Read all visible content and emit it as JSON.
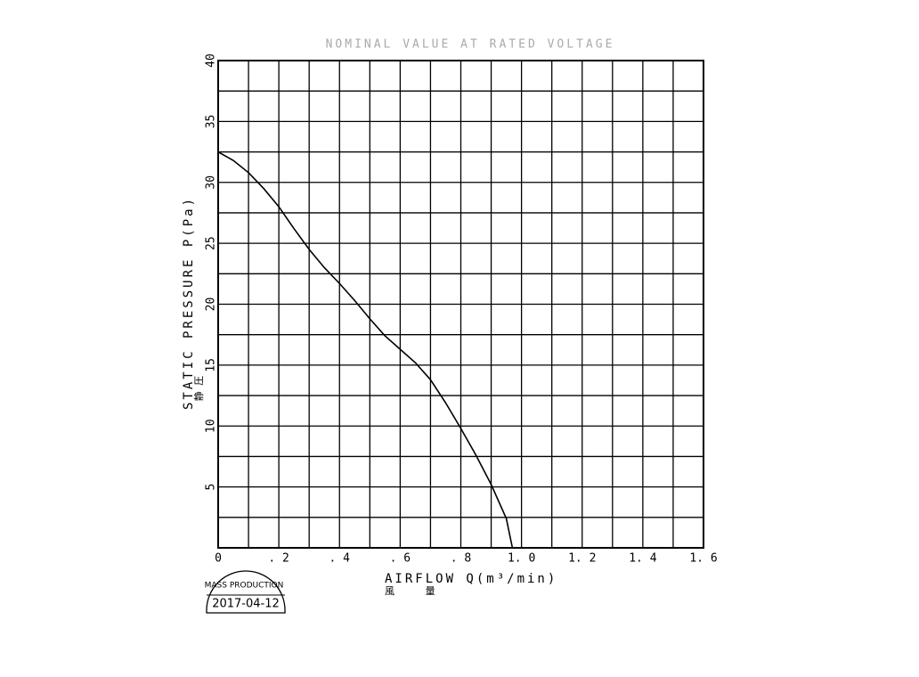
{
  "chart_data": {
    "type": "line",
    "title": "NOMINAL VALUE AT RATED VOLTAGE",
    "x_label": "AIRFLOW Q(m³/min)",
    "x_label_sub": "風 量",
    "y_label": "STATIC PRESSURE P(Pa)",
    "y_label_sub": "静 圧",
    "x": [
      0,
      0.05,
      0.1,
      0.15,
      0.2,
      0.25,
      0.3,
      0.35,
      0.4,
      0.45,
      0.5,
      0.55,
      0.6,
      0.65,
      0.7,
      0.75,
      0.8,
      0.85,
      0.9,
      0.95,
      0.97
    ],
    "series": [
      {
        "color": "#000000",
        "values": [
          32.5,
          31.8,
          30.8,
          29.5,
          28,
          26.2,
          24.5,
          23,
          21.7,
          20.3,
          18.8,
          17.4,
          16.3,
          15.2,
          13.8,
          11.9,
          9.8,
          7.6,
          5.2,
          2.4,
          0
        ]
      }
    ],
    "xlim": [
      0,
      1.6
    ],
    "ylim": [
      0,
      40
    ],
    "xticks": [
      0,
      {
        "value": 0.2,
        "label": ". 2"
      },
      {
        "value": 0.4,
        "label": ". 4"
      },
      {
        "value": 0.6,
        "label": ". 6"
      },
      {
        "value": 0.8,
        "label": ". 8"
      },
      {
        "value": 1,
        "label": "1. 0"
      },
      {
        "value": 1.2,
        "label": "1. 2"
      },
      {
        "value": 1.4,
        "label": "1. 4"
      },
      {
        "value": 1.6,
        "label": "1. 6"
      }
    ],
    "yticks": [
      5,
      10,
      15,
      20,
      25,
      30,
      35,
      40
    ],
    "minor_xticks": [
      0.1,
      0.3,
      0.5,
      0.7,
      0.9,
      1.1,
      1.3,
      1.5
    ],
    "minor_yticks": [
      2.5,
      7.5,
      12.5,
      17.5,
      22.5,
      27.5,
      32.5,
      37.5
    ],
    "grid": true
  },
  "stamp": {
    "status": "MASS PRODUCTION",
    "date": "2017-04-12"
  }
}
